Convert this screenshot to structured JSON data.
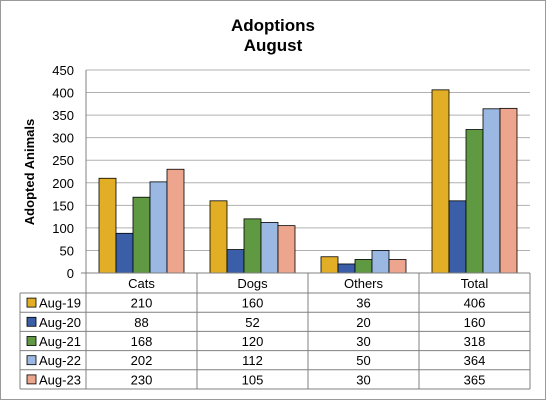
{
  "chart_data": {
    "type": "bar",
    "title": "Adoptions",
    "subtitle": "August",
    "ylabel": "Adopted Animals",
    "xlabel": "",
    "ylim": [
      0,
      450
    ],
    "y_ticks": [
      0,
      50,
      100,
      150,
      200,
      250,
      300,
      350,
      400,
      450
    ],
    "grid": true,
    "legend": "data-table",
    "categories": [
      "Cats",
      "Dogs",
      "Others",
      "Total"
    ],
    "series": [
      {
        "name": "Aug-19",
        "color": "#E1AE25",
        "values": [
          210,
          160,
          36,
          406
        ]
      },
      {
        "name": "Aug-20",
        "color": "#3A5FA8",
        "values": [
          88,
          52,
          20,
          160
        ]
      },
      {
        "name": "Aug-21",
        "color": "#5F9A43",
        "values": [
          168,
          120,
          30,
          318
        ]
      },
      {
        "name": "Aug-22",
        "color": "#9BB8E2",
        "values": [
          202,
          112,
          50,
          364
        ]
      },
      {
        "name": "Aug-23",
        "color": "#EEA58D",
        "values": [
          230,
          105,
          30,
          365
        ]
      }
    ]
  }
}
